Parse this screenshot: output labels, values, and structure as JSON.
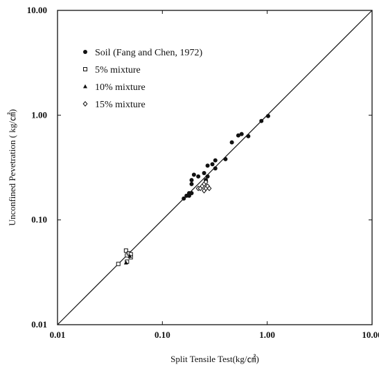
{
  "chart_data": {
    "type": "scatter",
    "title": "",
    "xlabel": "Split Tensile Test(kg/㎠)",
    "ylabel": "Unconfined Pevetration ( kg/㎠)",
    "x_scale": "log",
    "y_scale": "log",
    "xlim": [
      0.01,
      10
    ],
    "ylim": [
      0.01,
      10
    ],
    "x_ticks": [
      {
        "value": 0.01,
        "label": "0.01"
      },
      {
        "value": 0.1,
        "label": "0.10"
      },
      {
        "value": 1,
        "label": "1.00"
      },
      {
        "value": 10,
        "label": "10.00"
      }
    ],
    "y_ticks": [
      {
        "value": 0.01,
        "label": "0.01"
      },
      {
        "value": 0.1,
        "label": "0.10"
      },
      {
        "value": 1,
        "label": "1.00"
      },
      {
        "value": 10,
        "label": "10.00"
      }
    ],
    "grid": false,
    "legend_position": "upper-left",
    "reference_line": {
      "type": "line-of-equality",
      "from": [
        0.01,
        0.01
      ],
      "to": [
        10,
        10
      ]
    },
    "series": [
      {
        "name": "Soil (Fang and Chen, 1972)",
        "marker": "filled-circle",
        "points": [
          [
            0.16,
            0.16
          ],
          [
            0.17,
            0.17
          ],
          [
            0.18,
            0.17
          ],
          [
            0.18,
            0.18
          ],
          [
            0.19,
            0.18
          ],
          [
            0.19,
            0.22
          ],
          [
            0.19,
            0.24
          ],
          [
            0.2,
            0.27
          ],
          [
            0.22,
            0.26
          ],
          [
            0.25,
            0.28
          ],
          [
            0.26,
            0.24
          ],
          [
            0.27,
            0.26
          ],
          [
            0.27,
            0.33
          ],
          [
            0.3,
            0.34
          ],
          [
            0.32,
            0.31
          ],
          [
            0.32,
            0.37
          ],
          [
            0.4,
            0.38
          ],
          [
            0.46,
            0.55
          ],
          [
            0.53,
            0.64
          ],
          [
            0.57,
            0.66
          ],
          [
            0.66,
            0.63
          ],
          [
            0.88,
            0.88
          ],
          [
            1.02,
            0.98
          ]
        ]
      },
      {
        "name": "5% mixture",
        "marker": "open-square",
        "points": [
          [
            0.038,
            0.038
          ],
          [
            0.045,
            0.051
          ],
          [
            0.046,
            0.046
          ],
          [
            0.046,
            0.04
          ],
          [
            0.048,
            0.048
          ],
          [
            0.05,
            0.047
          ],
          [
            0.05,
            0.044
          ]
        ]
      },
      {
        "name": "10% mixture",
        "marker": "filled-triangle",
        "points": [
          [
            0.045,
            0.039
          ],
          [
            0.049,
            0.045
          ]
        ]
      },
      {
        "name": "15% mixture",
        "marker": "open-diamond",
        "points": [
          [
            0.22,
            0.2
          ],
          [
            0.23,
            0.2
          ],
          [
            0.24,
            0.21
          ],
          [
            0.25,
            0.19
          ],
          [
            0.26,
            0.2
          ],
          [
            0.27,
            0.21
          ],
          [
            0.25,
            0.22
          ],
          [
            0.26,
            0.23
          ],
          [
            0.28,
            0.2
          ]
        ]
      }
    ],
    "colors": {
      "ink": "#111111",
      "background": "#ffffff"
    }
  }
}
